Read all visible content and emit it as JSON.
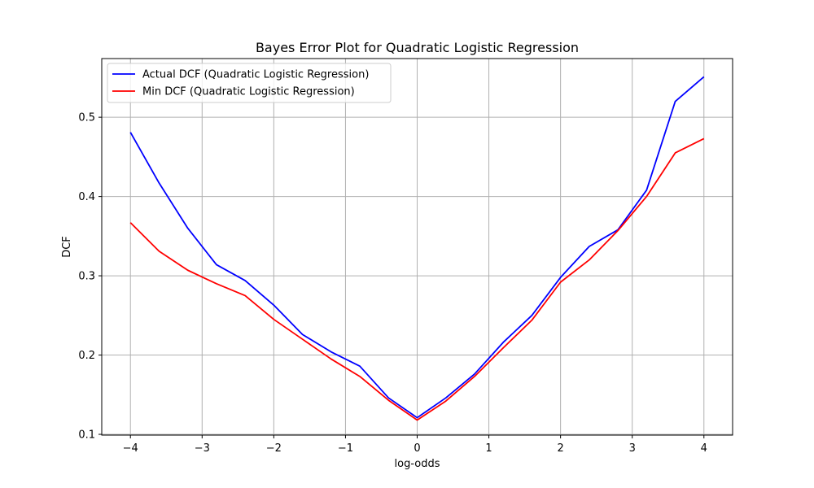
{
  "chart_data": {
    "type": "line",
    "title": "Bayes Error Plot for Quadratic Logistic Regression",
    "xlabel": "log-odds",
    "ylabel": "DCF",
    "xlim": [
      -4.4,
      4.4
    ],
    "ylim": [
      0.099,
      0.574
    ],
    "x_ticks": [
      -4,
      -3,
      -2,
      -1,
      0,
      1,
      2,
      3,
      4
    ],
    "x_tick_labels": [
      "−4",
      "−3",
      "−2",
      "−1",
      "0",
      "1",
      "2",
      "3",
      "4"
    ],
    "y_ticks": [
      0.1,
      0.2,
      0.3,
      0.4,
      0.5
    ],
    "y_tick_labels": [
      "0.1",
      "0.2",
      "0.3",
      "0.4",
      "0.5"
    ],
    "grid": true,
    "legend_position": "top-left",
    "x": [
      -4.0,
      -3.6,
      -3.2,
      -2.8,
      -2.4,
      -2.0,
      -1.6,
      -1.2,
      -0.8,
      -0.4,
      0.0,
      0.4,
      0.8,
      1.2,
      1.6,
      2.0,
      2.4,
      2.8,
      3.2,
      3.6,
      4.0
    ],
    "series": [
      {
        "name": "Actual DCF (Quadratic Logistic Regression)",
        "color": "#0000ff",
        "values": [
          0.481,
          0.417,
          0.36,
          0.314,
          0.294,
          0.263,
          0.226,
          0.204,
          0.186,
          0.146,
          0.121,
          0.146,
          0.176,
          0.216,
          0.25,
          0.298,
          0.337,
          0.358,
          0.408,
          0.52,
          0.551
        ]
      },
      {
        "name": "Min DCF (Quadratic Logistic Regression)",
        "color": "#ff0000",
        "values": [
          0.367,
          0.331,
          0.307,
          0.29,
          0.275,
          0.245,
          0.22,
          0.195,
          0.173,
          0.143,
          0.118,
          0.142,
          0.173,
          0.209,
          0.244,
          0.292,
          0.32,
          0.357,
          0.4,
          0.455,
          0.473
        ]
      }
    ]
  }
}
